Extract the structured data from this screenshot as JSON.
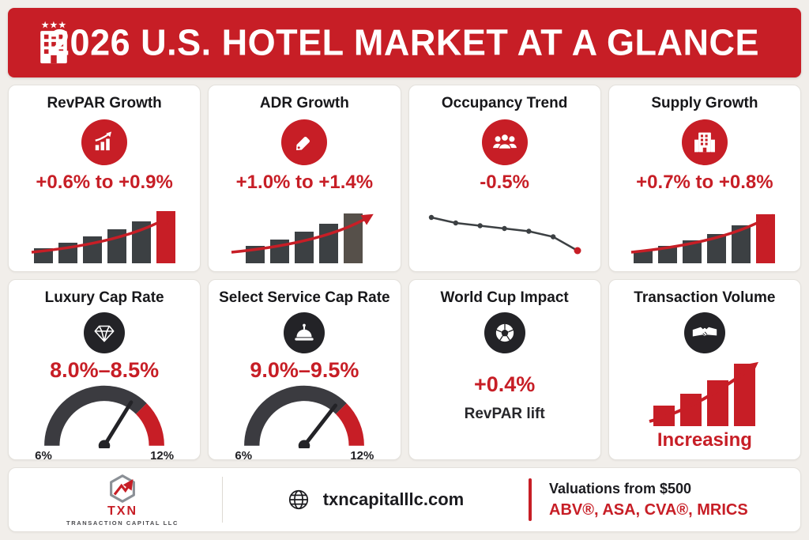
{
  "header": {
    "title": "2026 U.S. HOTEL MARKET AT A GLANCE"
  },
  "cards": [
    {
      "title": "RevPAR Growth",
      "value": "+0.6% to +0.9%"
    },
    {
      "title": "ADR Growth",
      "value": "+1.0% to +1.4%"
    },
    {
      "title": "Occupancy Trend",
      "value": "-0.5%"
    },
    {
      "title": "Supply Growth",
      "value": "+0.7% to +0.8%"
    },
    {
      "title": "Luxury Cap Rate",
      "value": "8.0%–8.5%",
      "gauge_min": "6%",
      "gauge_max": "12%"
    },
    {
      "title": "Select Service Cap Rate",
      "value": "9.0%–9.5%",
      "gauge_min": "6%",
      "gauge_max": "12%"
    },
    {
      "title": "World Cup Impact",
      "value": "+0.4%",
      "subtitle": "RevPAR lift"
    },
    {
      "title": "Transaction Volume",
      "value": "Increasing"
    }
  ],
  "charts": {
    "revpar": {
      "type": "bar",
      "values": [
        26,
        36,
        47,
        60,
        74,
        92
      ],
      "last_red": true,
      "arrow": true
    },
    "adr": {
      "type": "bar",
      "values": [
        30,
        42,
        55,
        70,
        88
      ],
      "last_red": false,
      "fade_last": true,
      "arrow": true
    },
    "occupancy": {
      "type": "line",
      "values": [
        100,
        98,
        97,
        96,
        95,
        93,
        88
      ],
      "last_red": true
    },
    "supply": {
      "type": "bar",
      "values": [
        22,
        30,
        40,
        52,
        66,
        86
      ],
      "last_red": true,
      "arrow": true
    },
    "transaction": {
      "type": "bar",
      "values": [
        30,
        48,
        68,
        92
      ],
      "all_red": true,
      "arrow": true
    }
  },
  "footer": {
    "logo": {
      "name": "TXN",
      "subtitle": "TRANSACTION CAPITAL LLC"
    },
    "website": "txncapitalllc.com",
    "valuations": {
      "line1": "Valuations from $500",
      "line2": "ABV®, ASA, CVA®, MRICS"
    }
  },
  "colors": {
    "red": "#c71e26",
    "dark": "#3c4043",
    "dark_circle": "#232327",
    "bar_fade": "#56504a"
  }
}
